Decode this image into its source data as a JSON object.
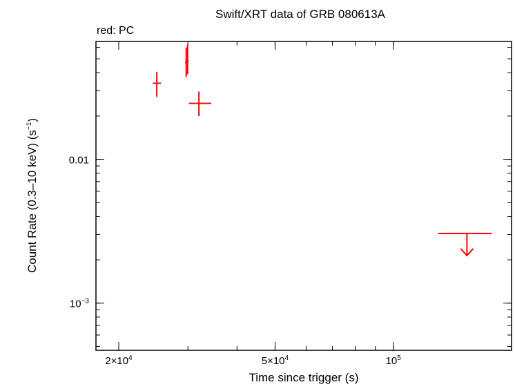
{
  "chart_data": {
    "type": "scatter",
    "title": "Swift/XRT data of GRB 080613A",
    "subtitle": "red: PC",
    "xlabel": "Time since trigger (s)",
    "ylabel_main": "Count Rate (0.3–10 keV) (s",
    "ylabel_sup": "−1",
    "ylabel_close": ")",
    "x_scale": "log",
    "y_scale": "log",
    "xlim": [
      17500,
      200000
    ],
    "ylim": [
      0.00047,
      0.066
    ],
    "x_ticks": [
      {
        "value": 20000,
        "base": "2×10",
        "exp": "4"
      },
      {
        "value": 50000,
        "base": "5×10",
        "exp": "4"
      },
      {
        "value": 100000,
        "base": "10",
        "exp": "5"
      }
    ],
    "y_ticks": [
      {
        "value": 0.01,
        "base": "0.01",
        "exp": ""
      },
      {
        "value": 0.001,
        "base": "10",
        "exp": "−3"
      }
    ],
    "grid": false,
    "color": "#ff0000",
    "series": [
      {
        "points": [
          {
            "x": 25000,
            "xerr": [
              24400,
              25600
            ],
            "y": 0.0338,
            "yerr": [
              0.0272,
              0.0405
            ]
          },
          {
            "x": 29700,
            "xerr": [
              29500,
              29900
            ],
            "y": 0.0473,
            "yerr": [
              0.0375,
              0.06
            ]
          },
          {
            "x": 29950,
            "xerr": [
              29750,
              30150
            ],
            "y": 0.0485,
            "yerr": [
              0.039,
              0.063
            ]
          },
          {
            "x": 32000,
            "xerr": [
              30200,
              34400
            ],
            "y": 0.0245,
            "yerr": [
              0.02,
              0.0296
            ]
          }
        ],
        "upper_limits": [
          {
            "x": 154000,
            "xerr": [
              130000,
              178000
            ],
            "y": 0.00305
          }
        ]
      }
    ]
  }
}
